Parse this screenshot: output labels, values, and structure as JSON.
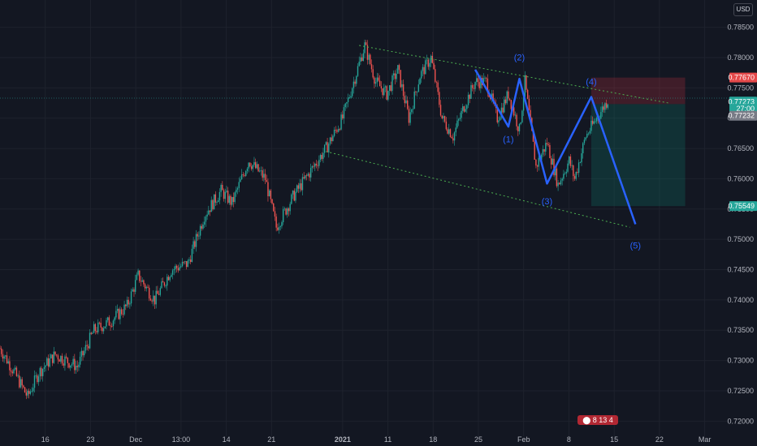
{
  "currency": "USD",
  "colors": {
    "background": "#131722",
    "grid": "#1e222d",
    "up": "#26a69a",
    "down": "#ef5350",
    "wave": "#2962ff",
    "channel": "#4caf50"
  },
  "chart_data": {
    "type": "candlestick",
    "ylim": [
      0.7175,
      0.7895
    ],
    "y_ticks": [
      "0.78500",
      "0.78000",
      "0.77500",
      "0.77000",
      "0.76500",
      "0.76000",
      "0.75500",
      "0.75000",
      "0.74500",
      "0.74000",
      "0.73500",
      "0.73000",
      "0.72500",
      "0.72000"
    ],
    "x_ticks": [
      "16",
      "23",
      "Dec",
      "13:00",
      "14",
      "21",
      "2021",
      "11",
      "18",
      "25",
      "Feb",
      "8",
      "15",
      "22",
      "Mar"
    ],
    "trend": [
      {
        "t": 0,
        "p": 0.732
      },
      {
        "t": 2,
        "p": 0.729
      },
      {
        "t": 5,
        "p": 0.724
      },
      {
        "t": 7,
        "p": 0.728
      },
      {
        "t": 10,
        "p": 0.731
      },
      {
        "t": 14,
        "p": 0.729
      },
      {
        "t": 17,
        "p": 0.735
      },
      {
        "t": 20,
        "p": 0.7365
      },
      {
        "t": 23,
        "p": 0.739
      },
      {
        "t": 25,
        "p": 0.744
      },
      {
        "t": 28,
        "p": 0.74
      },
      {
        "t": 31,
        "p": 0.745
      },
      {
        "t": 34,
        "p": 0.746
      },
      {
        "t": 37,
        "p": 0.754
      },
      {
        "t": 40,
        "p": 0.758
      },
      {
        "t": 42,
        "p": 0.756
      },
      {
        "t": 45,
        "p": 0.763
      },
      {
        "t": 48,
        "p": 0.76
      },
      {
        "t": 50,
        "p": 0.752
      },
      {
        "t": 53,
        "p": 0.757
      },
      {
        "t": 56,
        "p": 0.761
      },
      {
        "t": 59,
        "p": 0.765
      },
      {
        "t": 62,
        "p": 0.77
      },
      {
        "t": 64,
        "p": 0.776
      },
      {
        "t": 66,
        "p": 0.782
      },
      {
        "t": 68,
        "p": 0.776
      },
      {
        "t": 70,
        "p": 0.774
      },
      {
        "t": 72,
        "p": 0.778
      },
      {
        "t": 74,
        "p": 0.77
      },
      {
        "t": 76,
        "p": 0.777
      },
      {
        "t": 78,
        "p": 0.78
      },
      {
        "t": 80,
        "p": 0.77
      },
      {
        "t": 82,
        "p": 0.767
      },
      {
        "t": 84,
        "p": 0.772
      },
      {
        "t": 86,
        "p": 0.776
      },
      {
        "t": 88,
        "p": 0.776
      },
      {
        "t": 90,
        "p": 0.77
      },
      {
        "t": 92,
        "p": 0.774
      },
      {
        "t": 94,
        "p": 0.768
      },
      {
        "t": 95,
        "p": 0.776
      },
      {
        "t": 97,
        "p": 0.762
      },
      {
        "t": 99,
        "p": 0.766
      },
      {
        "t": 101,
        "p": 0.759
      },
      {
        "t": 103,
        "p": 0.763
      },
      {
        "t": 104,
        "p": 0.76
      },
      {
        "t": 106,
        "p": 0.767
      },
      {
        "t": 108,
        "p": 0.77
      },
      {
        "t": 110,
        "p": 0.773
      }
    ],
    "channel": {
      "upper": [
        {
          "t": 65,
          "p": 0.782
        },
        {
          "t": 121,
          "p": 0.7725
        }
      ],
      "lower": [
        {
          "t": 59,
          "p": 0.7645
        },
        {
          "t": 114,
          "p": 0.752
        }
      ]
    },
    "waves": [
      {
        "label": "(1)",
        "t": 92,
        "p": 0.7686,
        "label_p": 0.766
      },
      {
        "label": "(2)",
        "t": 94,
        "p": 0.7765,
        "label_p": 0.7795
      },
      {
        "label": "(3)",
        "t": 99,
        "p": 0.7592,
        "label_p": 0.7558
      },
      {
        "label": "(4)",
        "t": 107,
        "p": 0.7735,
        "label_p": 0.7755
      },
      {
        "label": "(5)",
        "t": 115,
        "p": 0.7525,
        "label_p": 0.7485
      }
    ],
    "wave_start": {
      "t": 86,
      "p": 0.778
    },
    "position": {
      "entry": 0.77232,
      "stop": 0.7767,
      "target": 0.75549,
      "t_start": 107,
      "t_end": 124
    },
    "price_tags": [
      {
        "label": "0.77670",
        "p": 0.7767,
        "color": "#e5494a"
      },
      {
        "label": "0.77273",
        "p": 0.77273,
        "color": "#26a69a"
      },
      {
        "label": "27:00",
        "p": 0.77155,
        "color": "#26a69a"
      },
      {
        "label": "0.77232",
        "p": 0.7704,
        "color": "#787b86"
      },
      {
        "label": "0.75549",
        "p": 0.75549,
        "color": "#26a69a"
      }
    ]
  },
  "footer_badge": "⬤ 8 13 4"
}
